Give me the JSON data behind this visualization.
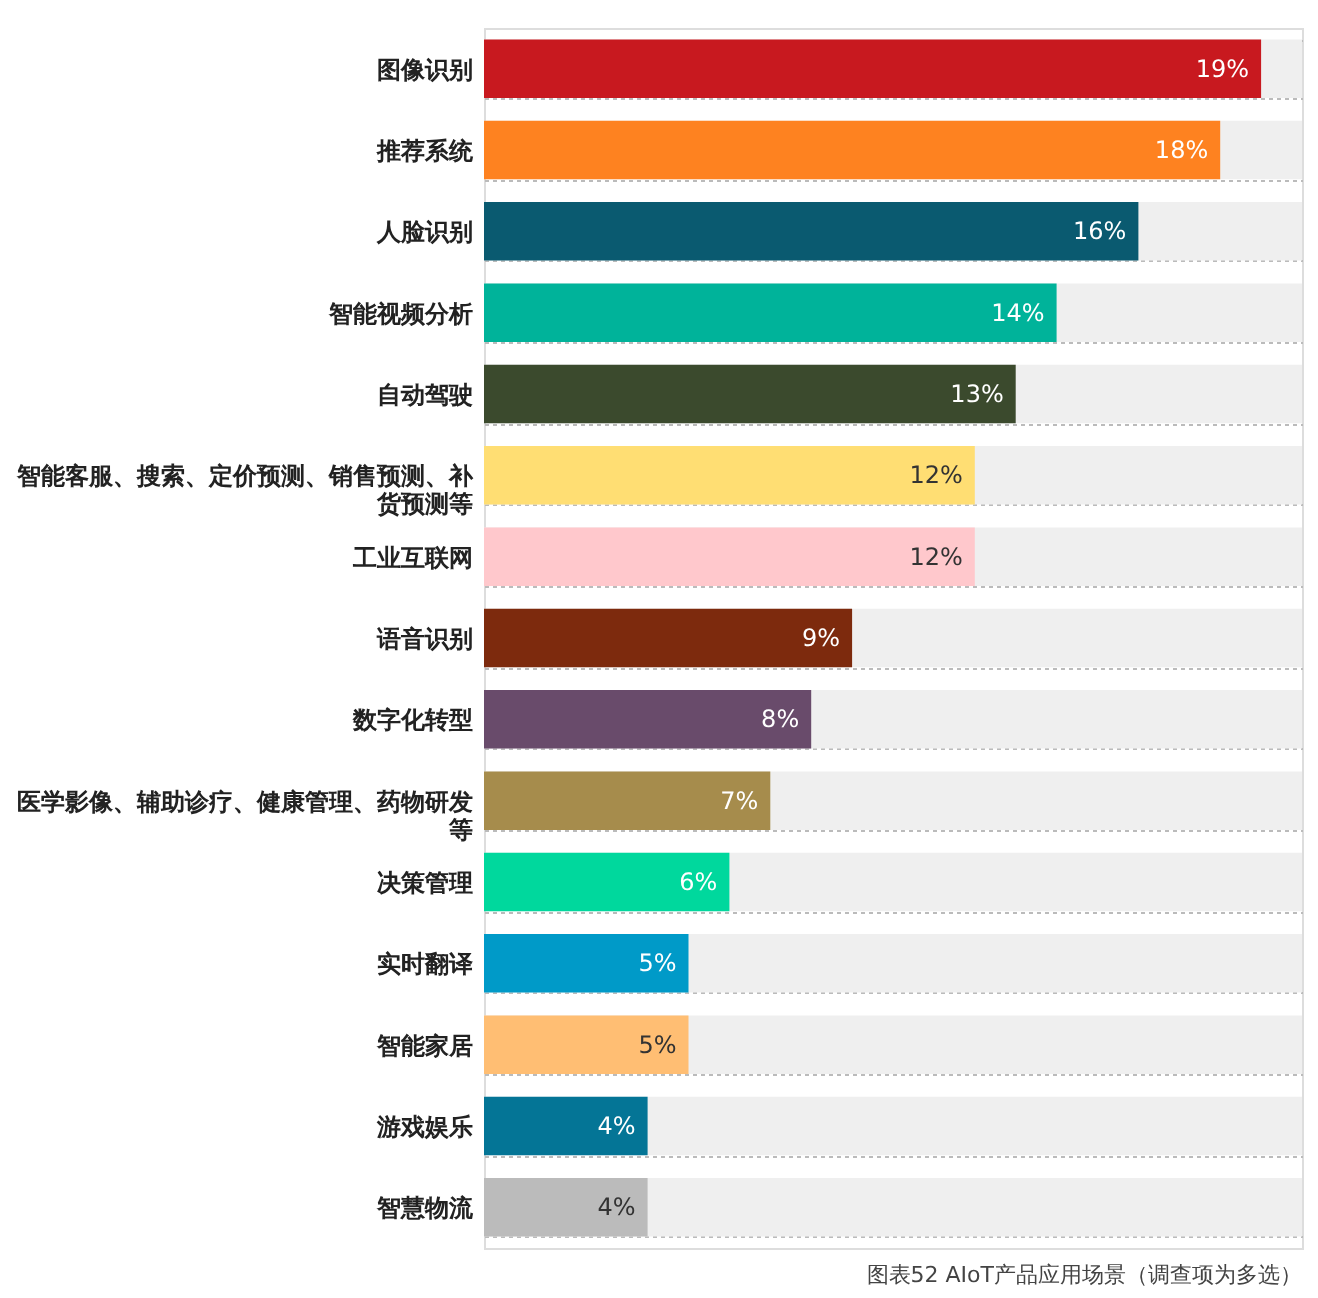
{
  "chart_data": {
    "type": "bar",
    "orientation": "horizontal",
    "categories": [
      "图像识别",
      "推荐系统",
      "人脸识别",
      "智能视频分析",
      "自动驾驶",
      "智能客服、搜索、定价预测、销售预测、补货预测等",
      "工业互联网",
      "语音识别",
      "数字化转型",
      "医学影像、辅助诊疗、健康管理、药物研发等",
      "决策管理",
      "实时翻译",
      "智能家居",
      "游戏娱乐",
      "智慧物流"
    ],
    "values": [
      19,
      18,
      16,
      14,
      13,
      12,
      12,
      9,
      8,
      7,
      6,
      5,
      5,
      4,
      4
    ],
    "colors": [
      "#c8191f",
      "#fe8220",
      "#0a5a70",
      "#00b39a",
      "#3b4a2d",
      "#ffde73",
      "#ffc8cc",
      "#7d2a0d",
      "#694b6b",
      "#a68c4c",
      "#00d89d",
      "#009ac8",
      "#ffbe73",
      "#047596",
      "#bbbbbb"
    ],
    "value_labels": [
      "19%",
      "18%",
      "16%",
      "14%",
      "13%",
      "12%",
      "12%",
      "9%",
      "8%",
      "7%",
      "6%",
      "5%",
      "5%",
      "4%",
      "4%"
    ],
    "xlim": [
      0,
      20
    ],
    "bands": [
      {
        "axis": "x",
        "from": 0,
        "to": 20,
        "color": "#efefef"
      }
    ],
    "grid": "y",
    "tick_labels": "y",
    "annotations": [
      "图表52 AIoT产品应用场景（调查项为多选）"
    ]
  }
}
